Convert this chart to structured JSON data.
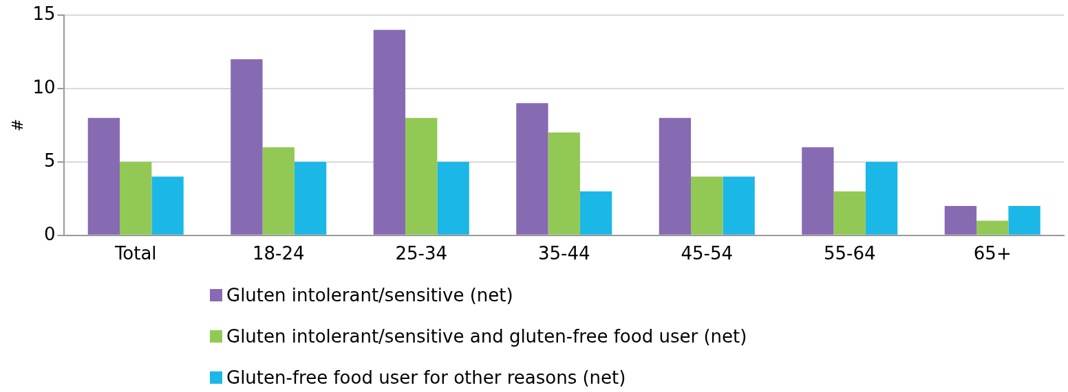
{
  "chart_data": {
    "type": "bar",
    "ylabel": "#",
    "categories": [
      "Total",
      "18-24",
      "25-34",
      "35-44",
      "45-54",
      "55-64",
      "65+"
    ],
    "series": [
      {
        "name": "Gluten intolerant/sensitive (net)",
        "color": "#866bb3",
        "values": [
          8,
          12,
          14,
          9,
          8,
          6,
          2
        ]
      },
      {
        "name": "Gluten intolerant/sensitive and gluten-free food user (net)",
        "color": "#92c954",
        "values": [
          5,
          6,
          8,
          7,
          4,
          3,
          1
        ]
      },
      {
        "name": "Gluten-free food user for other reasons (net)",
        "color": "#1bb7e6",
        "values": [
          4,
          5,
          5,
          3,
          4,
          5,
          2
        ]
      }
    ],
    "ylim": [
      0,
      15
    ],
    "yticks": [
      0,
      5,
      10,
      15
    ],
    "grid": "y",
    "legend": "bottom"
  }
}
